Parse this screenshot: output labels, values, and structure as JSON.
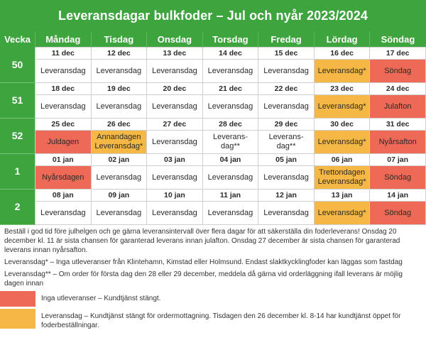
{
  "title": "Leveransdagar bulkfoder – Jul och nyår 2023/2024",
  "header": {
    "vecka": "Vecka",
    "days": [
      "Måndag",
      "Tisdag",
      "Onsdag",
      "Torsdag",
      "Fredag",
      "Lördag",
      "Söndag"
    ]
  },
  "weeks": [
    {
      "week": "50",
      "dates": [
        "11 dec",
        "12 dec",
        "13 dec",
        "14 dec",
        "15 dec",
        "16 dec",
        "17 dec"
      ],
      "cells": [
        "Leveransdag",
        "Leveransdag",
        "Leveransdag",
        "Leveransdag",
        "Leveransdag",
        "Leveransdag*",
        "Söndag"
      ],
      "status": [
        "",
        "",
        "",
        "",
        "",
        "orange",
        "red"
      ]
    },
    {
      "week": "51",
      "dates": [
        "18 dec",
        "19 dec",
        "20 dec",
        "21 dec",
        "22 dec",
        "23 dec",
        "24 dec"
      ],
      "cells": [
        "Leveransdag",
        "Leveransdag",
        "Leveransdag",
        "Leveransdag",
        "Leveransdag",
        "Leveransdag*",
        "Julafton"
      ],
      "status": [
        "",
        "",
        "",
        "",
        "",
        "orange",
        "red"
      ]
    },
    {
      "week": "52",
      "dates": [
        "25 dec",
        "26 dec",
        "27 dec",
        "28 dec",
        "29 dec",
        "30 dec",
        "31 dec"
      ],
      "cells": [
        "Juldagen",
        "Annandagen\nLeveransdag*",
        "Leveransdag",
        "Leverans-\ndag**",
        "Leverans-\ndag**",
        "Leveransdag*",
        "Nyårsafton"
      ],
      "status": [
        "red",
        "orange",
        "",
        "",
        "",
        "orange",
        "red"
      ]
    },
    {
      "week": "1",
      "dates": [
        "01 jan",
        "02 jan",
        "03 jan",
        "04 jan",
        "05 jan",
        "06 jan",
        "07 jan"
      ],
      "cells": [
        "Nyårsdagen",
        "Leveransdag",
        "Leveransdag",
        "Leveransdag",
        "Leveransdag",
        "Trettondagen\nLeveransdag*",
        "Söndag"
      ],
      "status": [
        "red",
        "",
        "",
        "",
        "",
        "orange",
        "red"
      ]
    },
    {
      "week": "2",
      "dates": [
        "08 jan",
        "09 jan",
        "10 jan",
        "11 jan",
        "12 jan",
        "13 jan",
        "14 jan"
      ],
      "cells": [
        "Leveransdag",
        "Leveransdag",
        "Leveransdag",
        "Leveransdag",
        "Leveransdag",
        "Leveransdag*",
        "Söndag"
      ],
      "status": [
        "",
        "",
        "",
        "",
        "",
        "orange",
        "red"
      ]
    }
  ],
  "notes": {
    "intro": "Beställ i god tid före julhelgen och ge gärna leveransintervall över flera dagar för att säkerställa din foderleverans! Onsdag 20 december kl. 11 är sista chansen för garanterad leverans innan julafton. Onsdag 27 december är sista chansen för garanterad leverans innan nyårsafton.",
    "star1": "Leveransdag* – Inga utleveranser från Klintehamn, Kimstad eller Holmsund. Endast slaktkycklingfoder kan läggas som fastdag",
    "star2": "Leveransdag** – Om order för första dag den 28 eller 29 december, meddela då gärna vid orderläggning ifall leverans är möjlig dagen innan"
  },
  "legend": {
    "red": "Inga utleveranser – Kundtjänst stängt.",
    "orange": "Leveransdag – Kundtjänst stängt för ordermottagning. Tisdagen den 26 december kl. 8-14 har kundtjänst öppet för foderbeställningar."
  },
  "colors": {
    "green": "#3da43e",
    "red": "#ee6a57",
    "orange": "#f5b844"
  }
}
